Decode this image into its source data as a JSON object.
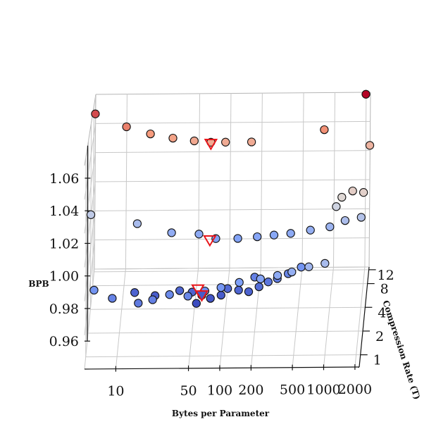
{
  "chart_data": {
    "type": "scatter3d",
    "title": "",
    "xlabel": "Bytes per Parameter",
    "ylabel": "Compression Rate (T)",
    "zlabel": "BPB",
    "x_scale": "log",
    "y_scale": "log",
    "x_ticks": [
      10,
      50,
      100,
      200,
      500,
      1000,
      2000
    ],
    "x_tick_labels": [
      "10",
      "50",
      "100",
      "200",
      "500",
      "1000",
      "2000"
    ],
    "y_ticks": [
      1,
      2,
      4,
      8,
      12
    ],
    "y_tick_labels": [
      "1",
      "2",
      "4",
      "8",
      "12"
    ],
    "z_ticks": [
      0.96,
      0.98,
      1.0,
      1.02,
      1.04,
      1.06
    ],
    "z_tick_labels": [
      "0.96",
      "0.98",
      "1.00",
      "1.02",
      "1.04",
      "1.06"
    ],
    "xlim": [
      5,
      2200
    ],
    "ylim": [
      0.7,
      13
    ],
    "zlim": [
      0.96,
      1.08
    ],
    "grid": true,
    "colormap": "coolwarm",
    "markers": {
      "points": "circle",
      "minima": "red-outlined downward triangle"
    },
    "points": [
      {
        "x": 5,
        "y": 12,
        "z": 1.068
      },
      {
        "x": 10,
        "y": 12,
        "z": 1.059
      },
      {
        "x": 17,
        "y": 12,
        "z": 1.054
      },
      {
        "x": 28,
        "y": 12,
        "z": 1.051
      },
      {
        "x": 45,
        "y": 12,
        "z": 1.049
      },
      {
        "x": 65,
        "y": 12,
        "z": 1.048
      },
      {
        "x": 90,
        "y": 12,
        "z": 1.048
      },
      {
        "x": 160,
        "y": 12,
        "z": 1.048
      },
      {
        "x": 800,
        "y": 12,
        "z": 1.056
      },
      {
        "x": 2000,
        "y": 12,
        "z": 1.08
      },
      {
        "x": 2200,
        "y": 12,
        "z": 1.045
      },
      {
        "x": 5,
        "y": 4,
        "z": 1.021
      },
      {
        "x": 14,
        "y": 4,
        "z": 1.015
      },
      {
        "x": 30,
        "y": 4,
        "z": 1.009
      },
      {
        "x": 55,
        "y": 4,
        "z": 1.008
      },
      {
        "x": 80,
        "y": 4,
        "z": 1.005
      },
      {
        "x": 130,
        "y": 4,
        "z": 1.005
      },
      {
        "x": 200,
        "y": 4,
        "z": 1.006
      },
      {
        "x": 290,
        "y": 4,
        "z": 1.007
      },
      {
        "x": 420,
        "y": 4,
        "z": 1.008
      },
      {
        "x": 650,
        "y": 4,
        "z": 1.01
      },
      {
        "x": 1000,
        "y": 4,
        "z": 1.012
      },
      {
        "x": 1400,
        "y": 4,
        "z": 1.016
      },
      {
        "x": 2000,
        "y": 4,
        "z": 1.018
      },
      {
        "x": 1300,
        "y": 4,
        "z": 1.031
      },
      {
        "x": 1650,
        "y": 4,
        "z": 1.035
      },
      {
        "x": 2100,
        "y": 4,
        "z": 1.034
      },
      {
        "x": 1150,
        "y": 4,
        "z": 1.025
      },
      {
        "x": 6,
        "y": 1,
        "z": 1.0
      },
      {
        "x": 9,
        "y": 1,
        "z": 0.995
      },
      {
        "x": 16,
        "y": 1,
        "z": 0.992
      },
      {
        "x": 22,
        "y": 1,
        "z": 0.994
      },
      {
        "x": 32,
        "y": 1,
        "z": 0.997
      },
      {
        "x": 48,
        "y": 1,
        "z": 0.996
      },
      {
        "x": 70,
        "y": 1,
        "z": 0.999
      },
      {
        "x": 100,
        "y": 1,
        "z": 1.001
      },
      {
        "x": 150,
        "y": 1,
        "z": 1.004
      },
      {
        "x": 240,
        "y": 1,
        "z": 1.006
      },
      {
        "x": 350,
        "y": 1,
        "z": 1.008
      },
      {
        "x": 480,
        "y": 1,
        "z": 1.01
      },
      {
        "x": 700,
        "y": 1,
        "z": 1.013
      },
      {
        "x": 1000,
        "y": 1,
        "z": 1.015
      },
      {
        "x": 14,
        "y": 2,
        "z": 0.985
      },
      {
        "x": 22,
        "y": 2,
        "z": 0.983
      },
      {
        "x": 38,
        "y": 2,
        "z": 0.986
      },
      {
        "x": 50,
        "y": 2,
        "z": 0.985
      },
      {
        "x": 62,
        "y": 2,
        "z": 0.983
      },
      {
        "x": 75,
        "y": 2,
        "z": 0.981
      },
      {
        "x": 95,
        "y": 2,
        "z": 0.983
      },
      {
        "x": 110,
        "y": 2,
        "z": 0.987
      },
      {
        "x": 140,
        "y": 2,
        "z": 0.986
      },
      {
        "x": 175,
        "y": 2,
        "z": 0.985
      },
      {
        "x": 220,
        "y": 2,
        "z": 0.988
      },
      {
        "x": 270,
        "y": 2,
        "z": 0.991
      },
      {
        "x": 330,
        "y": 2,
        "z": 0.993
      },
      {
        "x": 420,
        "y": 2,
        "z": 0.996
      },
      {
        "x": 560,
        "y": 2,
        "z": 1.0
      },
      {
        "x": 55,
        "y": 2,
        "z": 0.978
      },
      {
        "x": 200,
        "y": 2,
        "z": 0.994
      }
    ],
    "minima": [
      {
        "x": 65,
        "y": 12,
        "z": 1.047
      },
      {
        "x": 70,
        "y": 4,
        "z": 1.004
      },
      {
        "x": 60,
        "y": 1,
        "z": 1.0
      },
      {
        "x": 62,
        "y": 2,
        "z": 0.983
      }
    ]
  }
}
